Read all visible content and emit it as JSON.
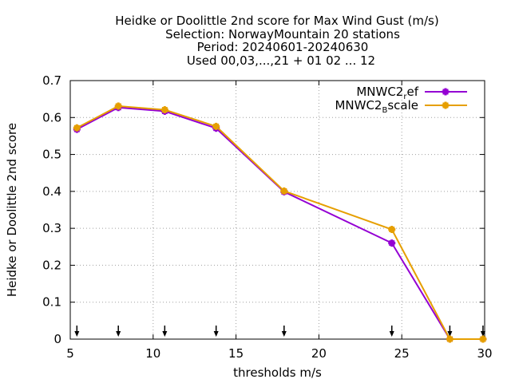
{
  "chart_data": {
    "type": "line",
    "title_lines": [
      "Heidke or Doolittle 2nd score  for Max Wind Gust (m/s)",
      "Selection: NorwayMountain     20 stations",
      "Period: 20240601-20240630",
      "Used 00,03,...,21 + 01 02 ... 12"
    ],
    "xlabel": "thresholds m/s",
    "ylabel": "Heidke or Doolittle 2nd score",
    "xlim": [
      5,
      30
    ],
    "ylim": [
      0,
      0.7
    ],
    "x_ticks": [
      5,
      10,
      15,
      20,
      25,
      30
    ],
    "y_ticks": [
      0,
      0.1,
      0.2,
      0.3,
      0.4,
      0.5,
      0.6,
      0.7
    ],
    "y_tick_labels": [
      "0",
      "0.1",
      "0.2",
      "0.3",
      "0.4",
      "0.5",
      "0.6",
      "0.7"
    ],
    "grid": true,
    "legend_position": "top-right",
    "threshold_arrows": [
      5.4,
      7.9,
      10.7,
      13.8,
      17.9,
      24.4,
      27.9,
      29.9
    ],
    "series": [
      {
        "name_main": "MNWC2",
        "name_sub": "r",
        "name_tail": "ef",
        "color": "#9400d3",
        "x": [
          5.4,
          7.9,
          10.7,
          13.8,
          17.9,
          24.4,
          27.9,
          29.9
        ],
        "y": [
          0.568,
          0.627,
          0.617,
          0.571,
          0.399,
          0.26,
          0.0,
          0.0
        ]
      },
      {
        "name_main": "MNWC2",
        "name_sub": "B",
        "name_tail": "scale",
        "color": "#e69f00",
        "x": [
          5.4,
          7.9,
          10.7,
          13.8,
          17.9,
          24.4,
          27.9,
          29.9
        ],
        "y": [
          0.572,
          0.631,
          0.621,
          0.576,
          0.401,
          0.297,
          0.0,
          0.0
        ]
      }
    ]
  }
}
